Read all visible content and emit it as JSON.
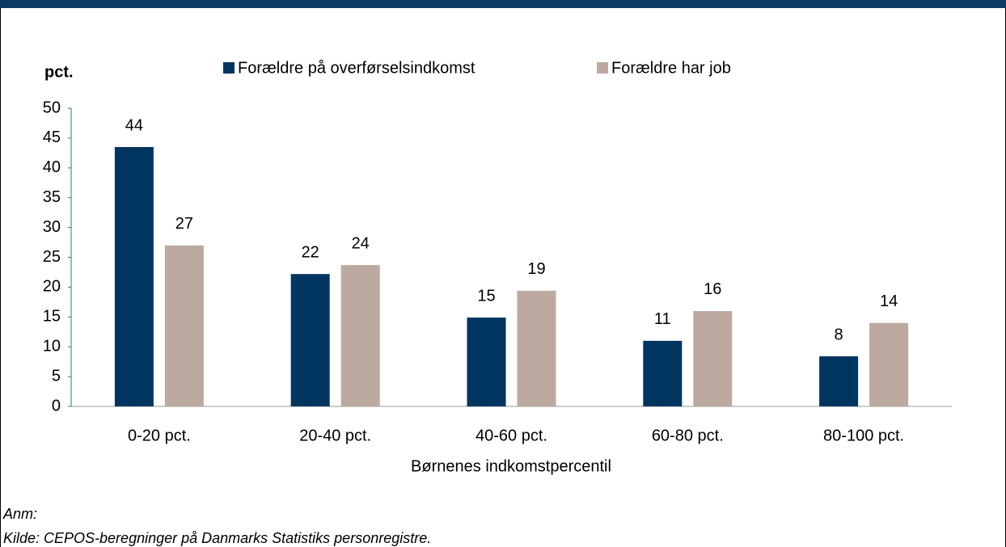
{
  "chart_data": {
    "type": "bar",
    "y_axis_label": "pct.",
    "x_axis_label": "Børnenes indkomstpercentil",
    "categories": [
      "0-20 pct.",
      "20-40 pct.",
      "40-60 pct.",
      "60-80 pct.",
      "80-100 pct."
    ],
    "series": [
      {
        "name": "Forældre på overførselsindkomst",
        "color": "#003560",
        "values": [
          43.5,
          22.2,
          14.9,
          11,
          8.4
        ],
        "value_labels": [
          "44",
          "22",
          "15",
          "11",
          "8"
        ]
      },
      {
        "name": "Forældre har job",
        "color": "#bcaaa0",
        "values": [
          27,
          23.7,
          19.4,
          16,
          14
        ],
        "value_labels": [
          "27",
          "24",
          "19",
          "16",
          "14"
        ]
      }
    ],
    "ylim": [
      0,
      50
    ],
    "yticks": [
      0,
      5,
      10,
      15,
      20,
      25,
      30,
      35,
      40,
      45,
      50
    ],
    "axis_color": "#2e7d5b",
    "notes": [
      "Anm:",
      "Kilde: CEPOS-beregninger på Danmarks Statistiks personregistre."
    ]
  }
}
